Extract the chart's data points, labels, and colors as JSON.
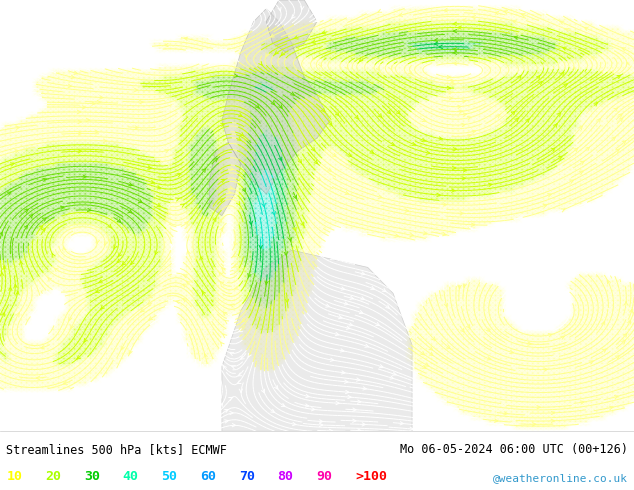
{
  "title_left": "Streamlines 500 hPa [kts] ECMWF",
  "title_right": "Mo 06-05-2024 06:00 UTC (00+126)",
  "watermark": "@weatheronline.co.uk",
  "legend_values": [
    "10",
    "20",
    "30",
    "40",
    "50",
    "60",
    "70",
    "80",
    "90",
    ">100"
  ],
  "legend_colors": [
    "#ffff00",
    "#aaff00",
    "#00cc00",
    "#00ffaa",
    "#00ccff",
    "#0099ff",
    "#0044ff",
    "#cc00ff",
    "#ff00aa",
    "#ff0000"
  ],
  "speed_levels": [
    0,
    10,
    20,
    30,
    40,
    50,
    60,
    70,
    80,
    90,
    100,
    150
  ],
  "colormap_colors": [
    "#ffffff",
    "#ffff88",
    "#ffff00",
    "#ccff00",
    "#aaff00",
    "#44ff44",
    "#00cc00",
    "#00ffaa",
    "#00ccff",
    "#0099ff",
    "#0044ff",
    "#cc00ff"
  ],
  "bg_color": "#ffffff",
  "figsize": [
    6.34,
    4.9
  ],
  "dpi": 100
}
